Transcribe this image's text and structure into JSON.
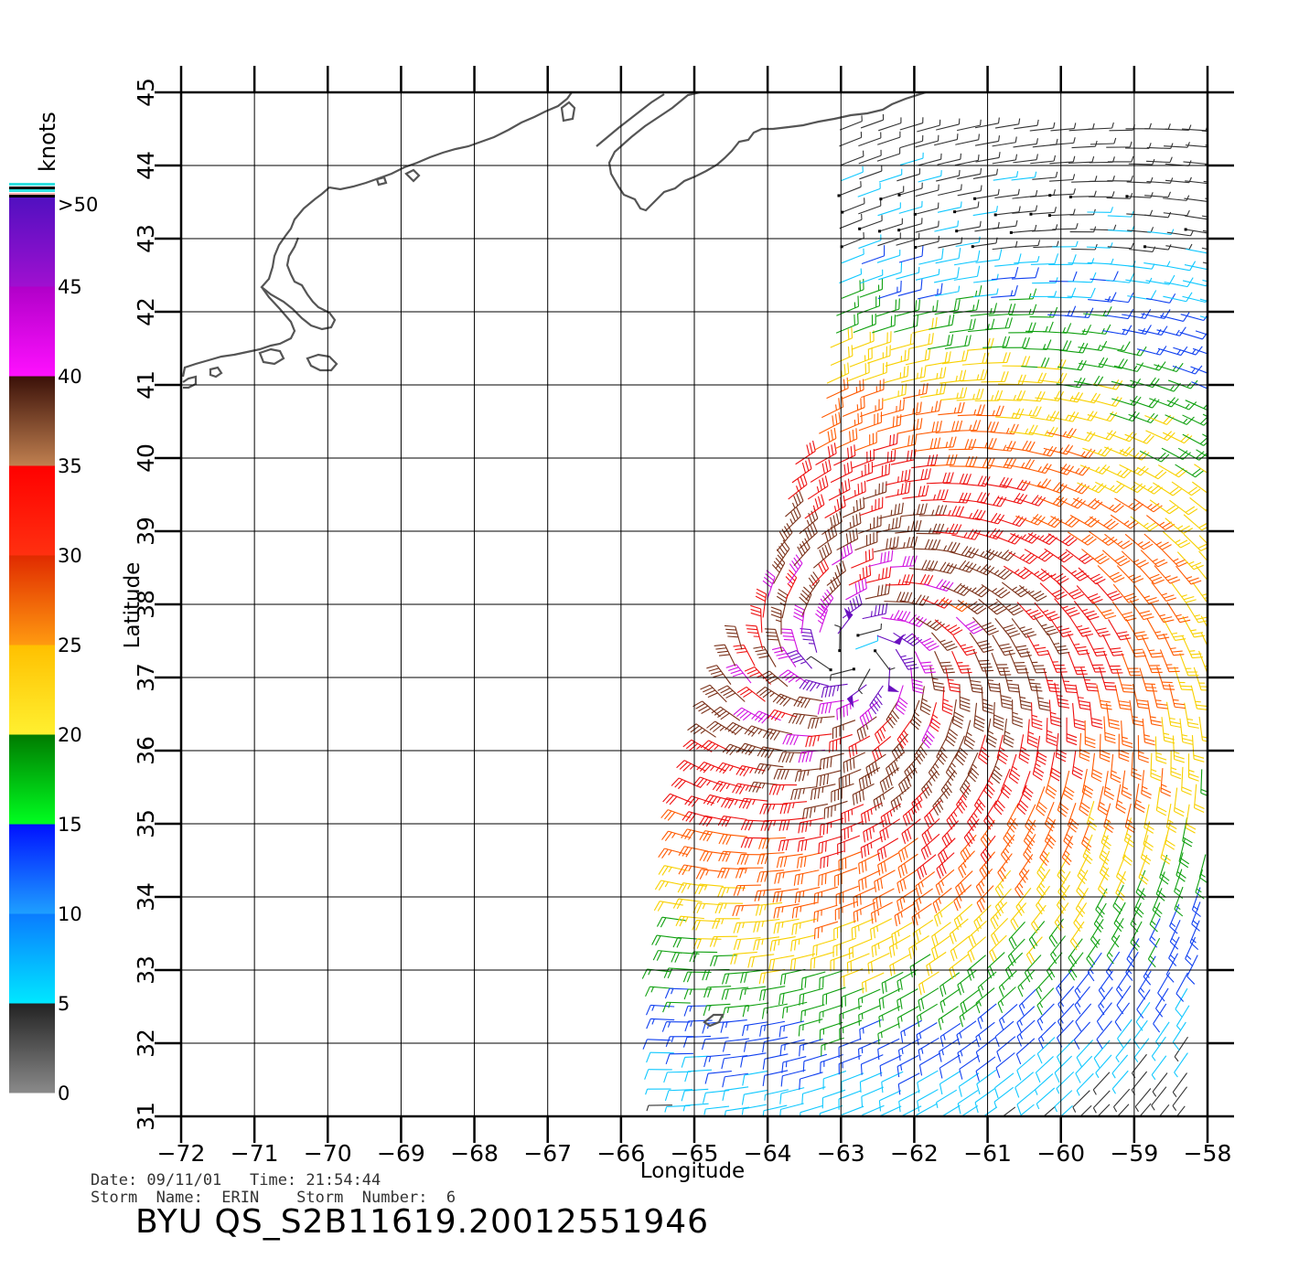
{
  "map": {
    "xlabel": "Longitude",
    "ylabel": "Latitude",
    "lon_range": [
      -72,
      -58
    ],
    "lat_range": [
      31,
      45
    ],
    "lon_ticks": [
      "−72",
      "−71",
      "−70",
      "−69",
      "−68",
      "−67",
      "−66",
      "−65",
      "−64",
      "−63",
      "−62",
      "−61",
      "−60",
      "−59",
      "−58"
    ],
    "lat_ticks": [
      "31",
      "32",
      "33",
      "34",
      "35",
      "36",
      "37",
      "38",
      "39",
      "40",
      "41",
      "42",
      "43",
      "44",
      "45"
    ]
  },
  "colorbar": {
    "title": "knots",
    "labels": [
      ">50",
      "45",
      "40",
      "35",
      "30",
      "25",
      "20",
      "15",
      "10",
      "5",
      "0"
    ],
    "bands": [
      {
        "range": [
          0,
          5
        ],
        "top": "#222222",
        "bottom": "#8a8a8a"
      },
      {
        "range": [
          5,
          10
        ],
        "top": "#0a7bff",
        "bottom": "#00e8ff"
      },
      {
        "range": [
          10,
          15
        ],
        "top": "#0010ff",
        "bottom": "#1ea0ff"
      },
      {
        "range": [
          15,
          20
        ],
        "top": "#007a00",
        "bottom": "#00ff20"
      },
      {
        "range": [
          20,
          25
        ],
        "top": "#ffc000",
        "bottom": "#fff030"
      },
      {
        "range": [
          25,
          30
        ],
        "top": "#e02a00",
        "bottom": "#ff9a10"
      },
      {
        "range": [
          30,
          35
        ],
        "top": "#ff0000",
        "bottom": "#ff3010"
      },
      {
        "range": [
          35,
          40
        ],
        "top": "#3a1008",
        "bottom": "#c08050"
      },
      {
        "range": [
          40,
          45
        ],
        "top": "#b000c8",
        "bottom": "#ff10ff"
      },
      {
        "range": [
          45,
          50
        ],
        "top": "#5010c0",
        "bottom": "#a010d0"
      }
    ]
  },
  "storm": {
    "center_lon": -62.8,
    "center_lat": 37.3
  },
  "footer": {
    "line1": "Date: 09/11/01   Time: 21:54:44",
    "line2": "Storm  Name:  ERIN    Storm  Number:  6",
    "product_id": "BYU  QS_S2B11619.20012551946"
  },
  "colors": {
    "coast": "#555555",
    "grid": "#000000"
  }
}
